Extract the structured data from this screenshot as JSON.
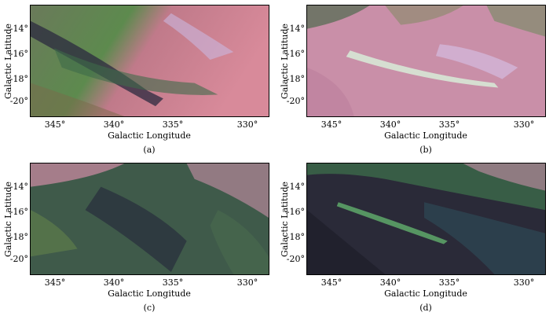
{
  "panels": [
    {
      "id": "a",
      "caption": "(a)",
      "xlabel": "Galactic Longitude",
      "ylabel": "Galactic Latitude",
      "xticks": [
        "345°",
        "340°",
        "335°",
        "330°"
      ],
      "yticks": [
        "-14°",
        "-16°",
        "-18°",
        "-20°"
      ]
    },
    {
      "id": "b",
      "caption": "(b)",
      "xlabel": "Galactic Longitude",
      "ylabel": "Galactic Latitude",
      "xticks": [
        "345°",
        "340°",
        "335°",
        "330°"
      ],
      "yticks": [
        "-14°",
        "-16°",
        "-18°",
        "-20°"
      ]
    },
    {
      "id": "c",
      "caption": "(c)",
      "xlabel": "Galactic Longitude",
      "ylabel": "Galactic Latitude",
      "xticks": [
        "345°",
        "340°",
        "335°",
        "330°"
      ],
      "yticks": [
        "-14°",
        "-16°",
        "-18°",
        "-20°"
      ]
    },
    {
      "id": "d",
      "caption": "(d)",
      "xlabel": "Galactic Longitude",
      "ylabel": "Galactic Latitude",
      "xticks": [
        "345°",
        "340°",
        "335°",
        "330°"
      ],
      "yticks": [
        "-14°",
        "-16°",
        "-18°",
        "-20°"
      ]
    }
  ]
}
